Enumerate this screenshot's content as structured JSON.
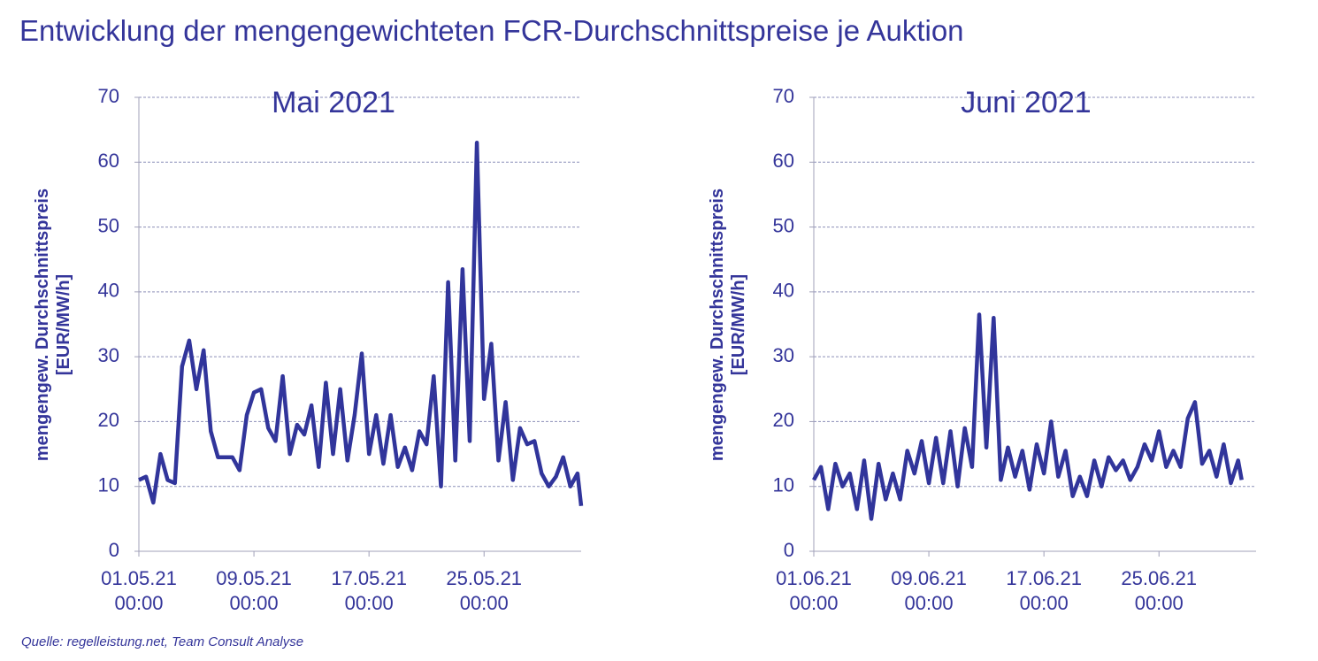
{
  "title": "Entwicklung der mengengewichteten FCR-Durchschnittspreise je Auktion",
  "source": "Quelle: regelleistung.net, Team Consult Analyse",
  "chart_data": [
    {
      "type": "line",
      "title": "Mai 2021",
      "y_label": "mengengew. Durchschnittspreis [EUR/MW/h]",
      "xlim": [
        0,
        30.75
      ],
      "ylim": [
        0,
        70
      ],
      "yticks": [
        0,
        10,
        20,
        30,
        40,
        50,
        60,
        70
      ],
      "xticks": [
        {
          "value": 0,
          "label": "01.05.21\n00:00"
        },
        {
          "value": 8,
          "label": "09.05.21\n00:00"
        },
        {
          "value": 16,
          "label": "17.05.21\n00:00"
        },
        {
          "value": 24,
          "label": "25.05.21\n00:00"
        }
      ],
      "grid": true,
      "x": [
        0,
        0.5,
        1,
        1.5,
        2,
        2.5,
        3,
        3.5,
        4,
        4.5,
        5,
        5.5,
        6,
        6.5,
        7,
        7.5,
        8,
        8.5,
        9,
        9.5,
        10,
        10.5,
        11,
        11.5,
        12,
        12.5,
        13,
        13.5,
        14,
        14.5,
        15,
        15.5,
        16,
        16.5,
        17,
        17.5,
        18,
        18.5,
        19,
        19.5,
        20,
        20.5,
        21,
        21.5,
        22,
        22.5,
        23,
        23.5,
        24,
        24.5,
        25,
        25.5,
        26,
        26.5,
        27,
        27.5,
        28,
        28.5,
        29,
        29.5,
        30,
        30.5,
        30.75
      ],
      "series": [
        {
          "color": "#31359b",
          "values": [
            11,
            11.5,
            7.5,
            15,
            11,
            10.5,
            28.5,
            32.5,
            25,
            31,
            18.5,
            14.5,
            14.5,
            14.5,
            12.5,
            21,
            24.5,
            25,
            19,
            17,
            27,
            15,
            19.5,
            18,
            22.5,
            13,
            26,
            15,
            25,
            14,
            21,
            30.5,
            15,
            21,
            13.5,
            21,
            13,
            16,
            12.5,
            18.5,
            16.5,
            27,
            10,
            41.5,
            14,
            43.5,
            17,
            63,
            23.5,
            32,
            14,
            23,
            11,
            19,
            16.5,
            17,
            12,
            10,
            11.5,
            14.5,
            10,
            12,
            7
          ]
        }
      ]
    },
    {
      "type": "line",
      "title": "Juni 2021",
      "y_label": "mengengew. Durchschnittspreis [EUR/MW/h]",
      "xlim": [
        0,
        30.75
      ],
      "ylim": [
        0,
        70
      ],
      "yticks": [
        0,
        10,
        20,
        30,
        40,
        50,
        60,
        70
      ],
      "xticks": [
        {
          "value": 0,
          "label": "01.06.21\n00:00"
        },
        {
          "value": 8,
          "label": "09.06.21\n00:00"
        },
        {
          "value": 16,
          "label": "17.06.21\n00:00"
        },
        {
          "value": 24,
          "label": "25.06.21\n00:00"
        }
      ],
      "grid": true,
      "x": [
        0,
        0.5,
        1,
        1.5,
        2,
        2.5,
        3,
        3.5,
        4,
        4.5,
        5,
        5.5,
        6,
        6.5,
        7,
        7.5,
        8,
        8.5,
        9,
        9.5,
        10,
        10.5,
        11,
        11.5,
        12,
        12.5,
        13,
        13.5,
        14,
        14.5,
        15,
        15.5,
        16,
        16.5,
        17,
        17.5,
        18,
        18.5,
        19,
        19.5,
        20,
        20.5,
        21,
        21.5,
        22,
        22.5,
        23,
        23.5,
        24,
        24.5,
        25,
        25.5,
        26,
        26.5,
        27,
        27.5,
        28,
        28.5,
        29,
        29.5,
        29.75
      ],
      "series": [
        {
          "color": "#31359b",
          "values": [
            11,
            13,
            6.5,
            13.5,
            10,
            12,
            6.5,
            14,
            5,
            13.5,
            8,
            12,
            8,
            15.5,
            12,
            17,
            10.5,
            17.5,
            10.5,
            18.5,
            10,
            19,
            13,
            36.5,
            16,
            36,
            11,
            16,
            11.5,
            15.5,
            9.5,
            16.5,
            12,
            20,
            11.5,
            15.5,
            8.5,
            11.5,
            8.5,
            14,
            10,
            14.5,
            12.5,
            14,
            11,
            13,
            16.5,
            14,
            18.5,
            13,
            15.5,
            13,
            20.5,
            23,
            13.5,
            15.5,
            11.5,
            16.5,
            10.5,
            14,
            11
          ]
        }
      ]
    }
  ]
}
